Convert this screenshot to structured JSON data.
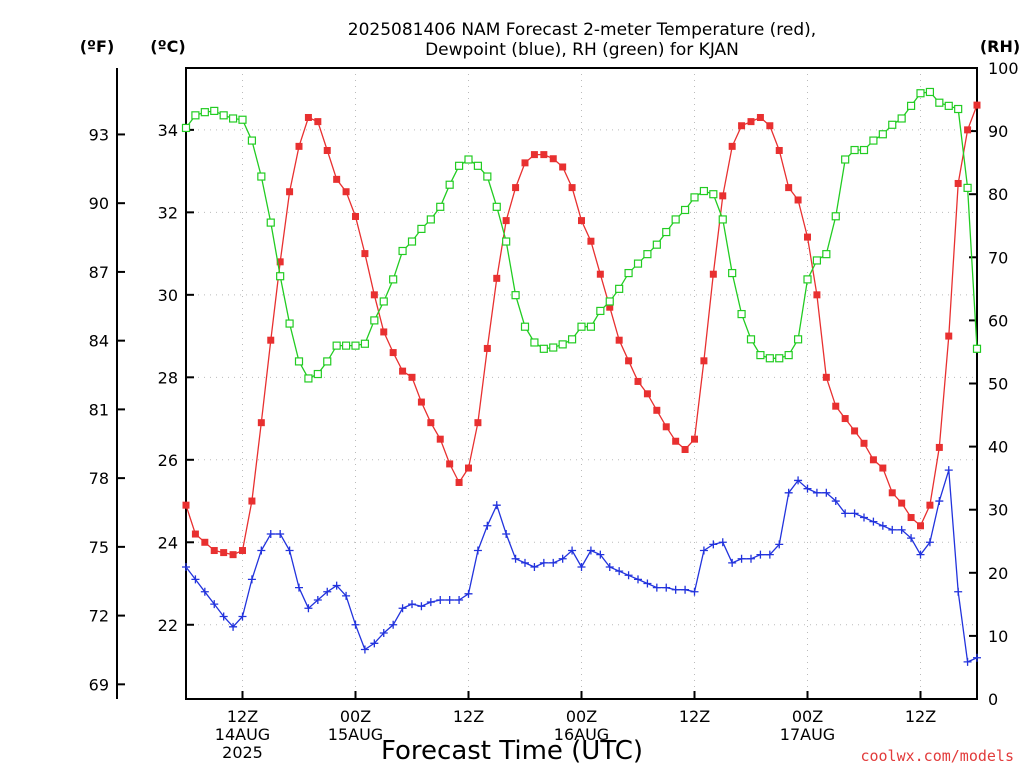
{
  "chart_data": {
    "type": "line",
    "title_line1": "2025081406 NAM Forecast 2-meter Temperature (red),",
    "title_line2": "Dewpoint (blue), RH (green) for KJAN",
    "xlabel": "Forecast Time (UTC)",
    "credit": "coolwx.com/models",
    "units": {
      "fahrenheit": "(ºF)",
      "celsius": "(ºC)",
      "rh": "(RH)"
    },
    "x_range_hours": [
      0,
      84
    ],
    "celsius_range": [
      20.2,
      35.5
    ],
    "rh_range": [
      0,
      100
    ],
    "fahrenheit_ticks": [
      "69",
      "72",
      "75",
      "78",
      "81",
      "84",
      "87",
      "90",
      "93"
    ],
    "celsius_ticks": [
      "22",
      "24",
      "26",
      "28",
      "30",
      "32",
      "34"
    ],
    "rh_ticks": [
      "0",
      "10",
      "20",
      "30",
      "40",
      "50",
      "60",
      "70",
      "80",
      "90",
      "100"
    ],
    "x_ticks": [
      {
        "hour": 6,
        "line1": "12Z",
        "line2": "14AUG",
        "line3": "2025"
      },
      {
        "hour": 18,
        "line1": "00Z",
        "line2": "15AUG",
        "line3": ""
      },
      {
        "hour": 30,
        "line1": "12Z",
        "line2": "",
        "line3": ""
      },
      {
        "hour": 42,
        "line1": "00Z",
        "line2": "16AUG",
        "line3": ""
      },
      {
        "hour": 54,
        "line1": "12Z",
        "line2": "",
        "line3": ""
      },
      {
        "hour": 66,
        "line1": "00Z",
        "line2": "17AUG",
        "line3": ""
      },
      {
        "hour": 78,
        "line1": "12Z",
        "line2": "",
        "line3": ""
      }
    ],
    "grid": true,
    "series": [
      {
        "name": "Temperature",
        "color": "#e83030",
        "marker": "filled-square",
        "units": "celsius",
        "points": [
          [
            0,
            24.9
          ],
          [
            1,
            24.2
          ],
          [
            2,
            24.0
          ],
          [
            3,
            23.8
          ],
          [
            4,
            23.75
          ],
          [
            5,
            23.7
          ],
          [
            6,
            23.8
          ],
          [
            7,
            25.0
          ],
          [
            8,
            26.9
          ],
          [
            9,
            28.9
          ],
          [
            10,
            30.8
          ],
          [
            11,
            32.5
          ],
          [
            12,
            33.6
          ],
          [
            13,
            34.3
          ],
          [
            14,
            34.2
          ],
          [
            15,
            33.5
          ],
          [
            16,
            32.8
          ],
          [
            17,
            32.5
          ],
          [
            18,
            31.9
          ],
          [
            19,
            31.0
          ],
          [
            20,
            30.0
          ],
          [
            21,
            29.1
          ],
          [
            22,
            28.6
          ],
          [
            23,
            28.15
          ],
          [
            24,
            28.0
          ],
          [
            25,
            27.4
          ],
          [
            26,
            26.9
          ],
          [
            27,
            26.5
          ],
          [
            28,
            25.9
          ],
          [
            29,
            25.45
          ],
          [
            30,
            25.8
          ],
          [
            31,
            26.9
          ],
          [
            32,
            28.7
          ],
          [
            33,
            30.4
          ],
          [
            34,
            31.8
          ],
          [
            35,
            32.6
          ],
          [
            36,
            33.2
          ],
          [
            37,
            33.4
          ],
          [
            38,
            33.4
          ],
          [
            39,
            33.3
          ],
          [
            40,
            33.1
          ],
          [
            41,
            32.6
          ],
          [
            42,
            31.8
          ],
          [
            43,
            31.3
          ],
          [
            44,
            30.5
          ],
          [
            45,
            29.7
          ],
          [
            46,
            28.9
          ],
          [
            47,
            28.4
          ],
          [
            48,
            27.9
          ],
          [
            49,
            27.6
          ],
          [
            50,
            27.2
          ],
          [
            51,
            26.8
          ],
          [
            52,
            26.45
          ],
          [
            53,
            26.25
          ],
          [
            54,
            26.5
          ],
          [
            55,
            28.4
          ],
          [
            56,
            30.5
          ],
          [
            57,
            32.4
          ],
          [
            58,
            33.6
          ],
          [
            59,
            34.1
          ],
          [
            60,
            34.2
          ],
          [
            61,
            34.3
          ],
          [
            62,
            34.1
          ],
          [
            63,
            33.5
          ],
          [
            64,
            32.6
          ],
          [
            65,
            32.3
          ],
          [
            66,
            31.4
          ],
          [
            67,
            30.0
          ],
          [
            68,
            28.0
          ],
          [
            69,
            27.3
          ],
          [
            70,
            27.0
          ],
          [
            71,
            26.7
          ],
          [
            72,
            26.4
          ],
          [
            73,
            26.0
          ],
          [
            74,
            25.8
          ],
          [
            75,
            25.2
          ],
          [
            76,
            24.95
          ],
          [
            77,
            24.6
          ],
          [
            78,
            24.4
          ],
          [
            79,
            24.9
          ],
          [
            80,
            26.3
          ],
          [
            81,
            29.0
          ],
          [
            82,
            32.7
          ],
          [
            83,
            34.0
          ],
          [
            84,
            34.6
          ]
        ]
      },
      {
        "name": "Dewpoint",
        "color": "#2233dd",
        "marker": "plus",
        "units": "celsius",
        "points": [
          [
            0,
            23.4
          ],
          [
            1,
            23.1
          ],
          [
            2,
            22.8
          ],
          [
            3,
            22.5
          ],
          [
            4,
            22.2
          ],
          [
            5,
            21.95
          ],
          [
            6,
            22.2
          ],
          [
            7,
            23.1
          ],
          [
            8,
            23.8
          ],
          [
            9,
            24.2
          ],
          [
            10,
            24.2
          ],
          [
            11,
            23.8
          ],
          [
            12,
            22.9
          ],
          [
            13,
            22.4
          ],
          [
            14,
            22.6
          ],
          [
            15,
            22.8
          ],
          [
            16,
            22.95
          ],
          [
            17,
            22.7
          ],
          [
            18,
            22.0
          ],
          [
            19,
            21.4
          ],
          [
            20,
            21.55
          ],
          [
            21,
            21.8
          ],
          [
            22,
            22.0
          ],
          [
            23,
            22.4
          ],
          [
            24,
            22.5
          ],
          [
            25,
            22.45
          ],
          [
            26,
            22.55
          ],
          [
            27,
            22.6
          ],
          [
            28,
            22.6
          ],
          [
            29,
            22.6
          ],
          [
            30,
            22.75
          ],
          [
            31,
            23.8
          ],
          [
            32,
            24.4
          ],
          [
            33,
            24.9
          ],
          [
            34,
            24.2
          ],
          [
            35,
            23.6
          ],
          [
            36,
            23.5
          ],
          [
            37,
            23.4
          ],
          [
            38,
            23.5
          ],
          [
            39,
            23.5
          ],
          [
            40,
            23.6
          ],
          [
            41,
            23.8
          ],
          [
            42,
            23.4
          ],
          [
            43,
            23.8
          ],
          [
            44,
            23.7
          ],
          [
            45,
            23.4
          ],
          [
            46,
            23.3
          ],
          [
            47,
            23.2
          ],
          [
            48,
            23.1
          ],
          [
            49,
            23.0
          ],
          [
            50,
            22.9
          ],
          [
            51,
            22.9
          ],
          [
            52,
            22.85
          ],
          [
            53,
            22.85
          ],
          [
            54,
            22.8
          ],
          [
            55,
            23.8
          ],
          [
            56,
            23.95
          ],
          [
            57,
            24.0
          ],
          [
            58,
            23.5
          ],
          [
            59,
            23.6
          ],
          [
            60,
            23.6
          ],
          [
            61,
            23.7
          ],
          [
            62,
            23.7
          ],
          [
            63,
            23.95
          ],
          [
            64,
            25.2
          ],
          [
            65,
            25.5
          ],
          [
            66,
            25.3
          ],
          [
            67,
            25.2
          ],
          [
            68,
            25.2
          ],
          [
            69,
            25.0
          ],
          [
            70,
            24.7
          ],
          [
            71,
            24.7
          ],
          [
            72,
            24.6
          ],
          [
            73,
            24.5
          ],
          [
            74,
            24.4
          ],
          [
            75,
            24.3
          ],
          [
            76,
            24.3
          ],
          [
            77,
            24.1
          ],
          [
            78,
            23.7
          ],
          [
            79,
            24.0
          ],
          [
            80,
            25.0
          ],
          [
            81,
            25.75
          ],
          [
            82,
            22.8
          ],
          [
            83,
            21.1
          ],
          [
            84,
            21.2
          ]
        ]
      },
      {
        "name": "RH",
        "color": "#22cc22",
        "marker": "open-square",
        "units": "rh",
        "points": [
          [
            0,
            90.5
          ],
          [
            1,
            92.5
          ],
          [
            2,
            93.0
          ],
          [
            3,
            93.2
          ],
          [
            4,
            92.5
          ],
          [
            5,
            92.0
          ],
          [
            6,
            91.8
          ],
          [
            7,
            88.5
          ],
          [
            8,
            82.8
          ],
          [
            9,
            75.5
          ],
          [
            10,
            67.0
          ],
          [
            11,
            59.5
          ],
          [
            12,
            53.5
          ],
          [
            13,
            50.8
          ],
          [
            14,
            51.5
          ],
          [
            15,
            53.5
          ],
          [
            16,
            56.0
          ],
          [
            17,
            56.0
          ],
          [
            18,
            56.0
          ],
          [
            19,
            56.3
          ],
          [
            20,
            60.0
          ],
          [
            21,
            63.0
          ],
          [
            22,
            66.5
          ],
          [
            23,
            71.0
          ],
          [
            24,
            72.5
          ],
          [
            25,
            74.5
          ],
          [
            26,
            76.0
          ],
          [
            27,
            78.0
          ],
          [
            28,
            81.5
          ],
          [
            29,
            84.5
          ],
          [
            30,
            85.5
          ],
          [
            31,
            84.5
          ],
          [
            32,
            82.8
          ],
          [
            33,
            78.0
          ],
          [
            34,
            72.5
          ],
          [
            35,
            64.0
          ],
          [
            36,
            59.0
          ],
          [
            37,
            56.5
          ],
          [
            38,
            55.5
          ],
          [
            39,
            55.7
          ],
          [
            40,
            56.2
          ],
          [
            41,
            57.0
          ],
          [
            42,
            59.0
          ],
          [
            43,
            59.0
          ],
          [
            44,
            61.5
          ],
          [
            45,
            63.0
          ],
          [
            46,
            65.0
          ],
          [
            47,
            67.5
          ],
          [
            48,
            69.0
          ],
          [
            49,
            70.5
          ],
          [
            50,
            72.0
          ],
          [
            51,
            74.0
          ],
          [
            52,
            76.0
          ],
          [
            53,
            77.5
          ],
          [
            54,
            79.5
          ],
          [
            55,
            80.5
          ],
          [
            56,
            80.0
          ],
          [
            57,
            76.0
          ],
          [
            58,
            67.5
          ],
          [
            59,
            61.0
          ],
          [
            60,
            57.0
          ],
          [
            61,
            54.5
          ],
          [
            62,
            54.0
          ],
          [
            63,
            54.0
          ],
          [
            64,
            54.5
          ],
          [
            65,
            57.0
          ],
          [
            66,
            66.5
          ],
          [
            67,
            69.5
          ],
          [
            68,
            70.5
          ],
          [
            69,
            76.5
          ],
          [
            70,
            85.5
          ],
          [
            71,
            87.0
          ],
          [
            72,
            87.0
          ],
          [
            73,
            88.5
          ],
          [
            74,
            89.5
          ],
          [
            75,
            91.0
          ],
          [
            76,
            92.0
          ],
          [
            77,
            94.0
          ],
          [
            78,
            96.0
          ],
          [
            79,
            96.2
          ],
          [
            80,
            94.5
          ],
          [
            81,
            94.0
          ],
          [
            82,
            93.5
          ],
          [
            83,
            81.0
          ],
          [
            84,
            55.5
          ]
        ]
      }
    ]
  }
}
